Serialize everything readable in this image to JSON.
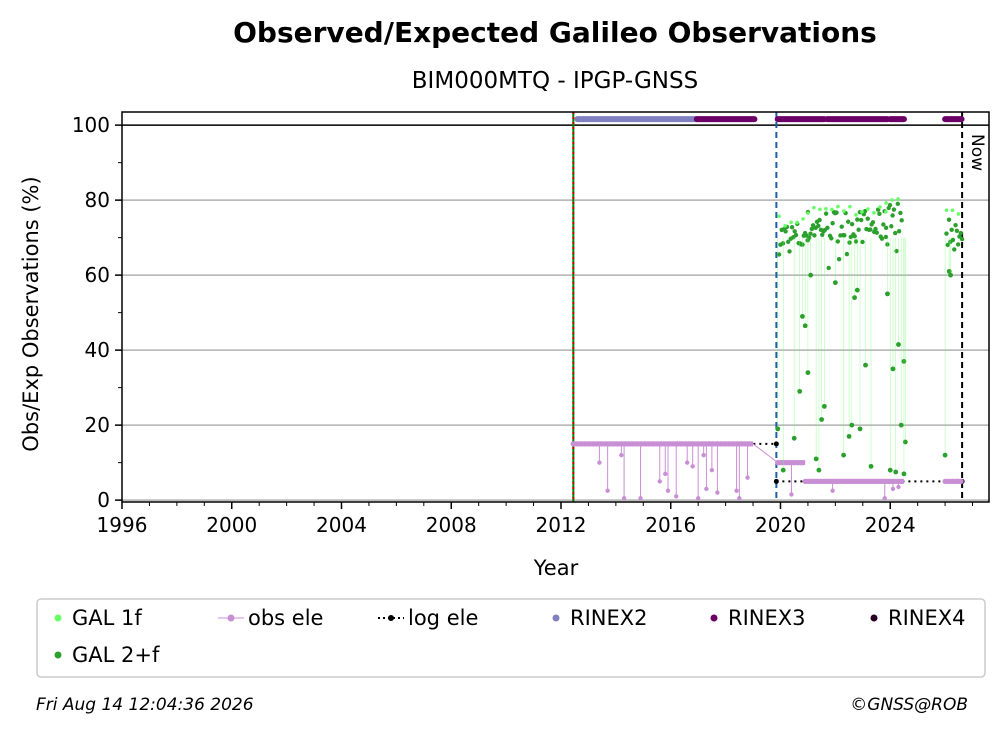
{
  "chart_data": {
    "type": "scatter",
    "title": "Observed/Expected Galileo Observations",
    "subtitle": "BIM000MTQ - IPGP-GNSS",
    "xlabel": "Year",
    "ylabel": "Obs/Exp Observations (%)",
    "xlim": [
      1996,
      2027.6
    ],
    "ylim": [
      -0.5,
      103.5
    ],
    "xticks": [
      "1996",
      "2000",
      "2004",
      "2008",
      "2012",
      "2016",
      "2020",
      "2024"
    ],
    "yticks": [
      "0",
      "20",
      "40",
      "60",
      "80",
      "100"
    ],
    "grid": "horizontal",
    "reference_line": 100,
    "vlines": [
      {
        "x": 2012.45,
        "color": "#008000",
        "style": "solid"
      },
      {
        "x": 2012.45,
        "color": "#cc0000",
        "style": "dotted"
      },
      {
        "x": 2019.85,
        "color": "#1f5fa8",
        "style": "dashed"
      },
      {
        "x": 2026.62,
        "color": "#000000",
        "style": "dashed",
        "label": "Now"
      }
    ],
    "rinex_bars": [
      {
        "series": "RINEX2",
        "from": 2012.6,
        "to": 2016.95,
        "y": 101.6
      },
      {
        "series": "RINEX3",
        "from": 2016.95,
        "to": 2019.05,
        "y": 101.6
      },
      {
        "series": "RINEX3",
        "from": 2019.9,
        "to": 2021.6,
        "y": 101.6
      },
      {
        "series": "RINEX3",
        "from": 2021.7,
        "to": 2023.9,
        "y": 101.6
      },
      {
        "series": "RINEX3",
        "from": 2024.0,
        "to": 2024.5,
        "y": 101.6
      },
      {
        "series": "RINEX3",
        "from": 2026.0,
        "to": 2026.6,
        "y": 101.6
      }
    ],
    "log_ele": [
      {
        "x": [
          2012.45,
          2019.85
        ],
        "y": [
          15,
          15
        ]
      },
      {
        "x": [
          2019.85,
          2026.62
        ],
        "y": [
          5,
          5
        ]
      }
    ],
    "obs_ele_segments": [
      {
        "from": 2012.45,
        "to": 2019.0,
        "y": 15
      },
      {
        "from": 2019.9,
        "to": 2020.9,
        "y": 10
      },
      {
        "from": 2020.9,
        "to": 2024.5,
        "y": 5
      },
      {
        "from": 2026.0,
        "to": 2026.6,
        "y": 5
      }
    ],
    "obs_ele_drops": [
      [
        2013.4,
        10
      ],
      [
        2013.7,
        2.5
      ],
      [
        2014.2,
        12
      ],
      [
        2014.3,
        0.5
      ],
      [
        2014.9,
        0.5
      ],
      [
        2015.6,
        5
      ],
      [
        2015.8,
        7
      ],
      [
        2015.9,
        2.5
      ],
      [
        2016.2,
        1
      ],
      [
        2016.6,
        10
      ],
      [
        2016.8,
        9
      ],
      [
        2017.0,
        0.5
      ],
      [
        2017.2,
        12
      ],
      [
        2017.3,
        3
      ],
      [
        2017.5,
        8
      ],
      [
        2017.7,
        2
      ],
      [
        2018.4,
        2.5
      ],
      [
        2018.5,
        0.5
      ],
      [
        2018.8,
        6
      ],
      [
        2020.4,
        1.5
      ],
      [
        2021.9,
        2.5
      ],
      [
        2023.8,
        0.5
      ],
      [
        2024.1,
        3
      ],
      [
        2024.3,
        3.5
      ]
    ],
    "gal_2f_band": [
      {
        "from": 2019.95,
        "to": 2021.0,
        "center": 70
      },
      {
        "from": 2021.0,
        "to": 2023.85,
        "center": 73
      },
      {
        "from": 2023.85,
        "to": 2024.45,
        "center": 75
      },
      {
        "from": 2026.05,
        "to": 2026.62,
        "center": 72
      }
    ],
    "gal_2f_outliers": [
      [
        2019.9,
        19
      ],
      [
        2020.1,
        8
      ],
      [
        2020.5,
        16.5
      ],
      [
        2020.7,
        29
      ],
      [
        2020.8,
        49
      ],
      [
        2020.9,
        46.5
      ],
      [
        2021.0,
        34
      ],
      [
        2021.1,
        60
      ],
      [
        2021.3,
        11
      ],
      [
        2021.4,
        8
      ],
      [
        2021.5,
        21.5
      ],
      [
        2021.6,
        25
      ],
      [
        2022.0,
        58
      ],
      [
        2022.3,
        12
      ],
      [
        2022.5,
        17
      ],
      [
        2022.6,
        20
      ],
      [
        2022.7,
        54
      ],
      [
        2022.8,
        56
      ],
      [
        2022.9,
        19
      ],
      [
        2023.1,
        36
      ],
      [
        2023.3,
        9
      ],
      [
        2023.9,
        55
      ],
      [
        2024.0,
        8
      ],
      [
        2024.1,
        35
      ],
      [
        2024.2,
        7.5
      ],
      [
        2024.3,
        41.5
      ],
      [
        2024.4,
        20
      ],
      [
        2024.5,
        37
      ],
      [
        2024.55,
        15.5
      ],
      [
        2024.5,
        7
      ],
      [
        2026.0,
        12
      ],
      [
        2026.15,
        61
      ],
      [
        2026.2,
        60
      ]
    ],
    "legend": [
      {
        "label": "GAL 1f",
        "kind": "dot",
        "color": "#66ff66"
      },
      {
        "label": "obs ele",
        "kind": "dot-line",
        "color": "#c98fd4"
      },
      {
        "label": "log ele",
        "kind": "dot-dotted",
        "color": "#000000"
      },
      {
        "label": "RINEX2",
        "kind": "dot",
        "color": "#8080c0"
      },
      {
        "label": "RINEX3",
        "kind": "dot",
        "color": "#6b0066"
      },
      {
        "label": "RINEX4",
        "kind": "dot",
        "color": "#2a0022"
      },
      {
        "label": "GAL 2+f",
        "kind": "dot",
        "color": "#2ca02c"
      }
    ],
    "legend_placement": "below"
  },
  "colors": {
    "gal_1f": "#66ff66",
    "gal_2f": "#2ca02c",
    "obs_ele": "#c98fd4",
    "log_ele": "#000000",
    "rinex2": "#8080c0",
    "rinex3": "#6b0066",
    "rinex4": "#2a0022"
  },
  "footer": {
    "timestamp": "Fri Aug 14 12:04:36 2026",
    "credit": "©GNSS@ROB"
  }
}
